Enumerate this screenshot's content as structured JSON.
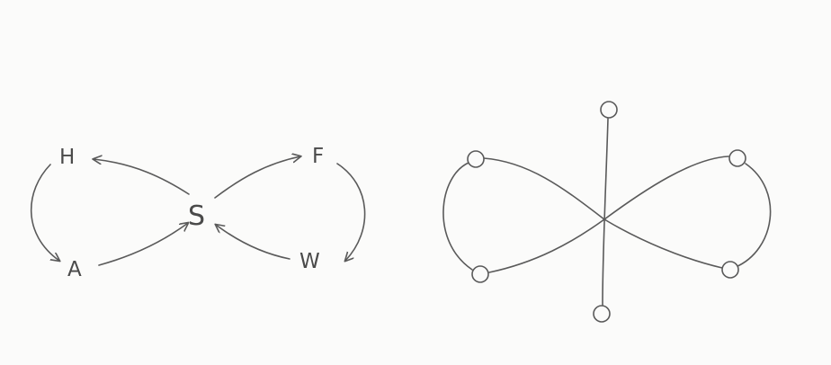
{
  "diagrams": [
    {
      "kind": "labeled-figure-eight",
      "nodes": [
        {
          "id": "H",
          "label": "H"
        },
        {
          "id": "A",
          "label": "A"
        },
        {
          "id": "S",
          "label": "S"
        },
        {
          "id": "F",
          "label": "F"
        },
        {
          "id": "W",
          "label": "W"
        }
      ],
      "edges": [
        {
          "from": "S",
          "to": "H"
        },
        {
          "from": "H",
          "to": "A"
        },
        {
          "from": "A",
          "to": "S"
        },
        {
          "from": "S",
          "to": "F"
        },
        {
          "from": "F",
          "to": "W"
        },
        {
          "from": "W",
          "to": "S"
        }
      ]
    },
    {
      "kind": "circle-figure-eight",
      "nodes": [
        {
          "id": "top"
        },
        {
          "id": "bottom"
        },
        {
          "id": "left-top"
        },
        {
          "id": "left-bottom"
        },
        {
          "id": "right-top"
        },
        {
          "id": "right-bottom"
        }
      ],
      "edges": [
        {
          "from": "top",
          "to": "bottom"
        },
        {
          "from": "left-top",
          "to": "left-bottom"
        },
        {
          "from": "right-top",
          "to": "right-bottom"
        },
        {
          "from": "left-top",
          "to": "right-bottom"
        },
        {
          "from": "left-bottom",
          "to": "right-top"
        }
      ]
    }
  ],
  "colors": {
    "ink": "#5a5a5a",
    "paper": "#fbfbfa"
  }
}
